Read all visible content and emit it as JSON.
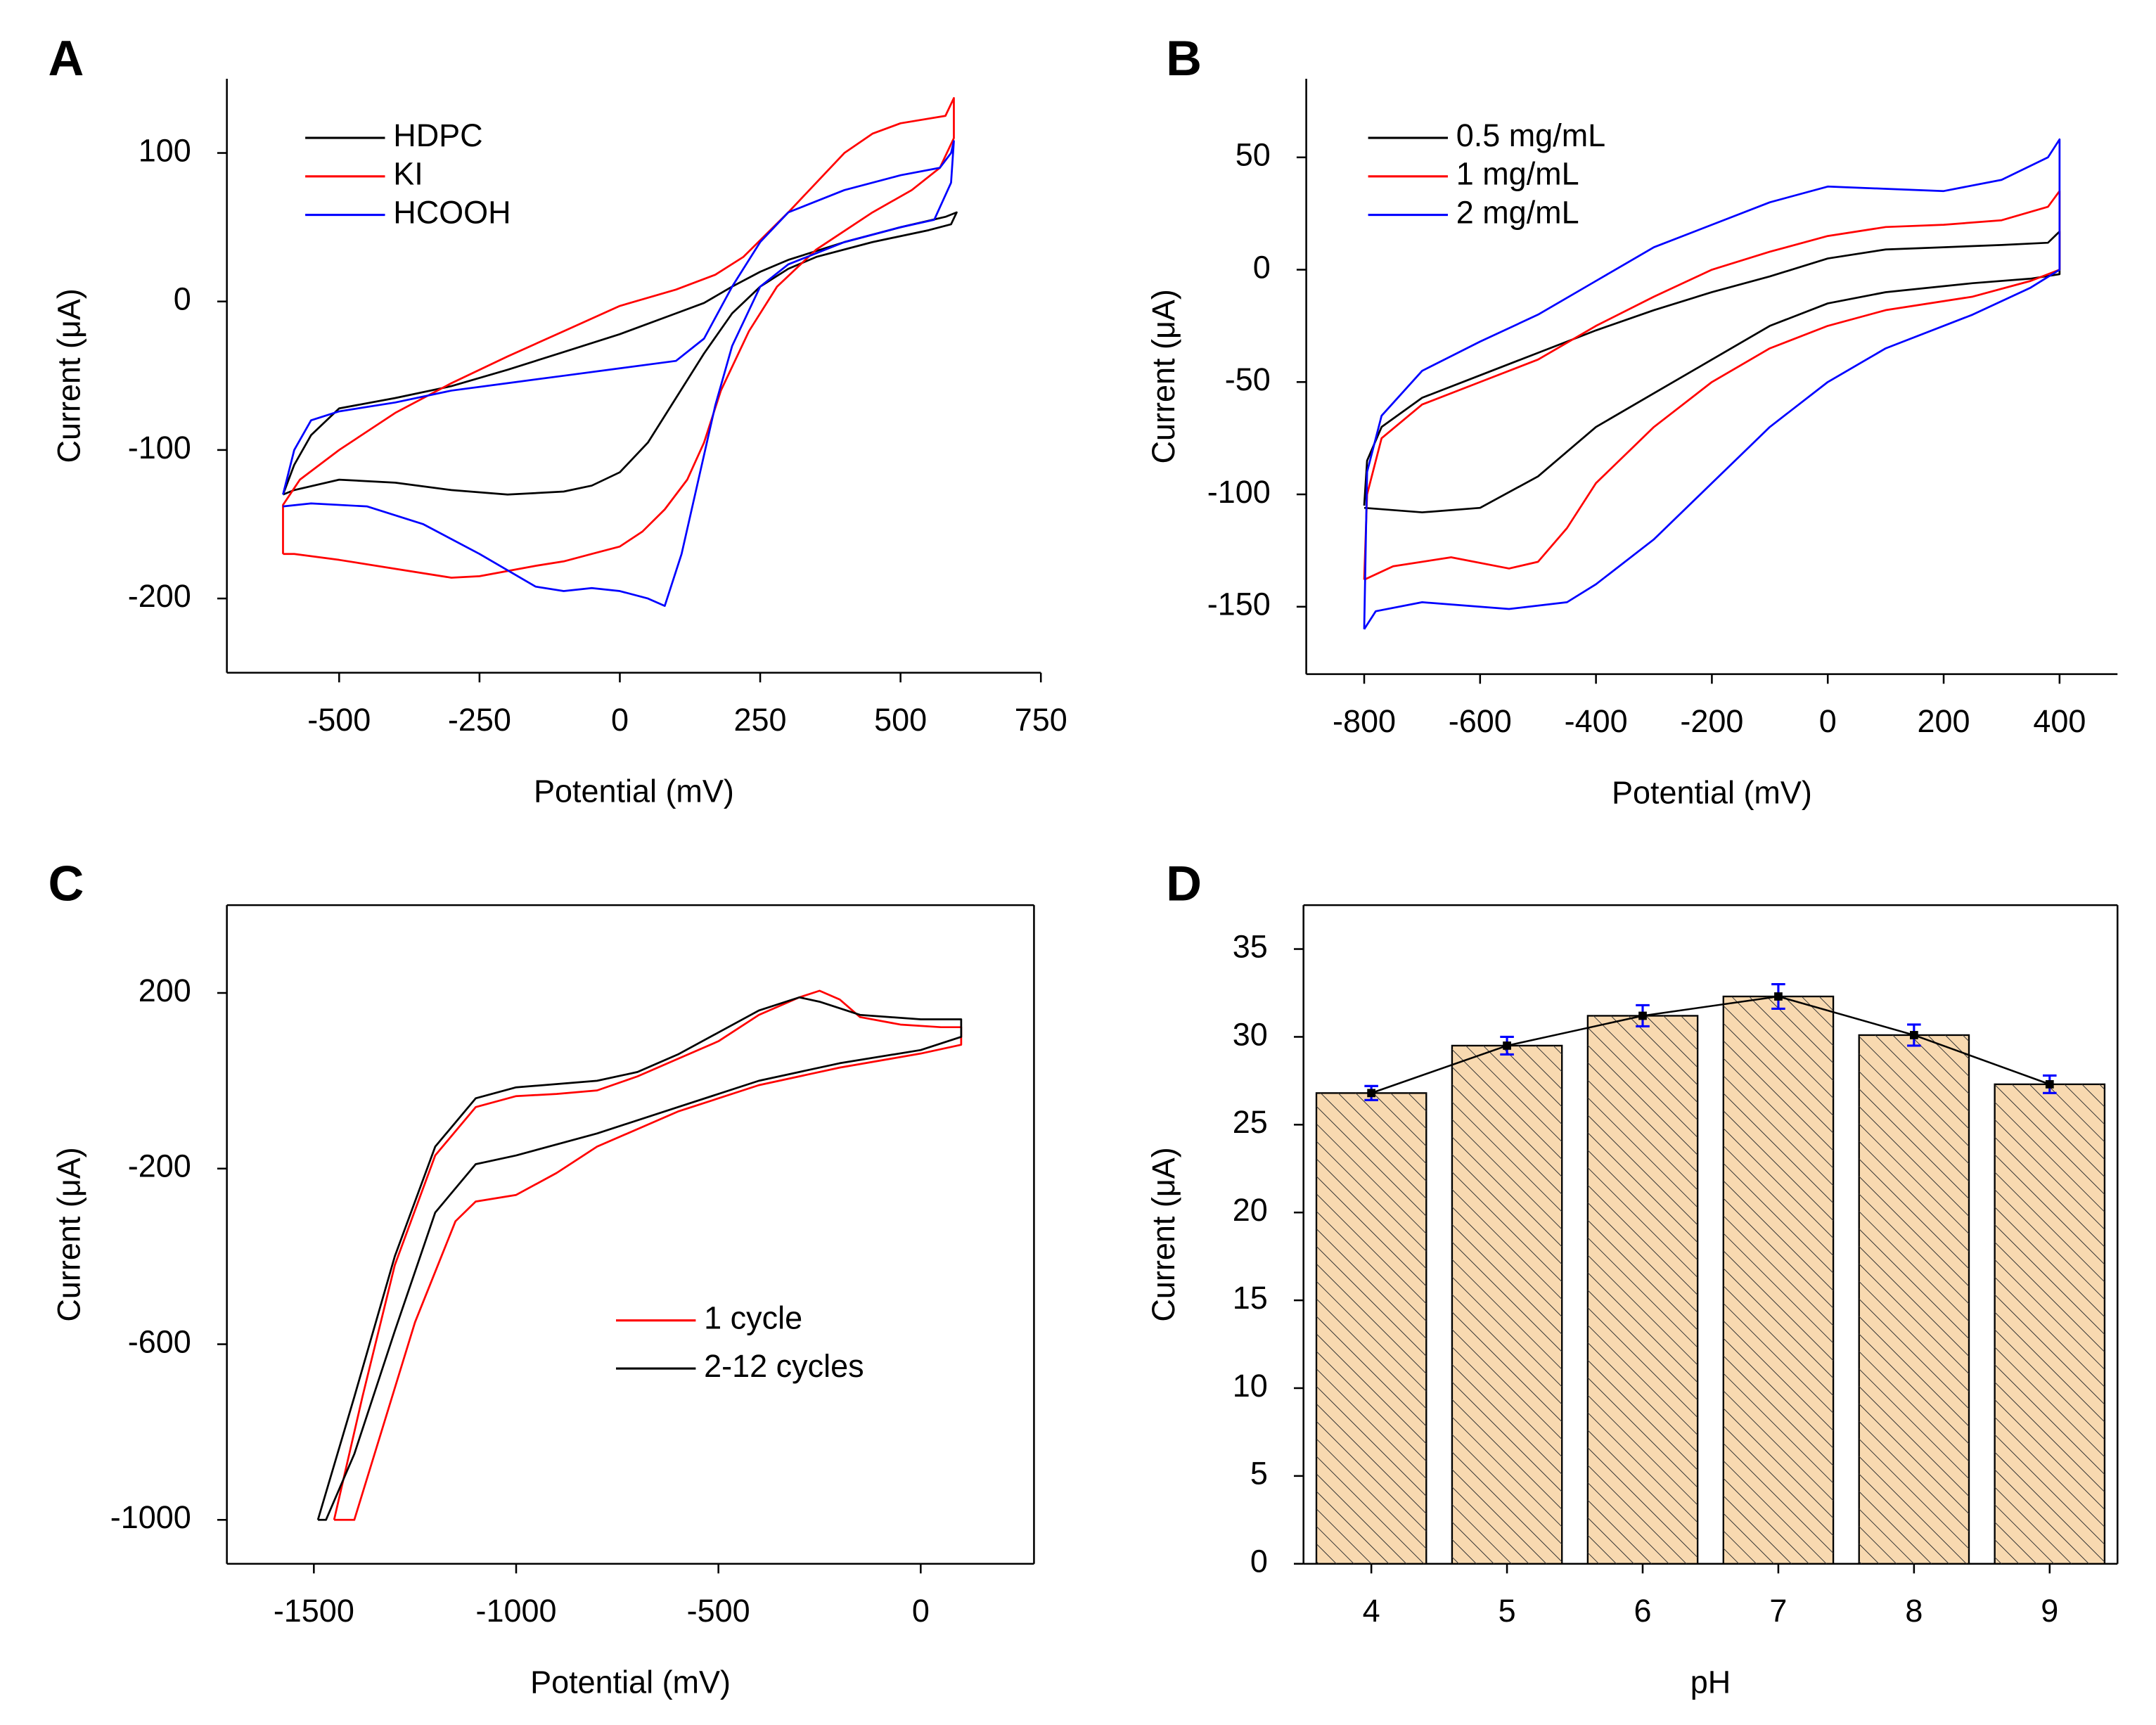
{
  "chart_data": [
    {
      "panel": "A",
      "type": "line",
      "xlabel": "Potential (mV)",
      "ylabel": "Current (μA)",
      "xlim": [
        -700,
        750
      ],
      "ylim": [
        -250,
        150
      ],
      "xticks": [
        -500,
        -250,
        0,
        250,
        500,
        750
      ],
      "yticks": [
        -200,
        -100,
        0,
        100
      ],
      "series": [
        {
          "name": "HDPC",
          "color": "#000000",
          "x": [
            -600,
            -580,
            -550,
            -500,
            -400,
            -300,
            -200,
            -100,
            0,
            100,
            150,
            200,
            250,
            300,
            400,
            500,
            580,
            600,
            590,
            550,
            450,
            350,
            300,
            250,
            200,
            150,
            100,
            50,
            0,
            -50,
            -100,
            -200,
            -300,
            -400,
            -500,
            -580,
            -600
          ],
          "values": [
            -130,
            -110,
            -90,
            -72,
            -65,
            -57,
            -46,
            -34,
            -22,
            -8,
            -1,
            10,
            20,
            28,
            40,
            50,
            57,
            60,
            52,
            48,
            40,
            30,
            22,
            10,
            -8,
            -35,
            -65,
            -95,
            -115,
            -124,
            -128,
            -130,
            -127,
            -122,
            -120,
            -127,
            -130
          ]
        },
        {
          "name": "KI",
          "color": "#ff0000",
          "x": [
            -600,
            -600,
            -570,
            -500,
            -400,
            -300,
            -200,
            -100,
            0,
            100,
            170,
            220,
            260,
            300,
            350,
            400,
            450,
            500,
            580,
            595,
            595,
            570,
            520,
            450,
            350,
            280,
            230,
            180,
            150,
            120,
            80,
            40,
            0,
            -50,
            -100,
            -150,
            -250,
            -300,
            -400,
            -500,
            -580,
            -600
          ],
          "values": [
            -170,
            -137,
            -120,
            -100,
            -75,
            -55,
            -37,
            -20,
            -3,
            8,
            18,
            30,
            45,
            60,
            80,
            100,
            113,
            120,
            125,
            137,
            110,
            90,
            75,
            60,
            35,
            10,
            -20,
            -60,
            -95,
            -120,
            -140,
            -155,
            -165,
            -170,
            -175,
            -178,
            -185,
            -186,
            -180,
            -174,
            -170,
            -170
          ]
        },
        {
          "name": "HCOOH",
          "color": "#0000ff",
          "x": [
            -600,
            -580,
            -550,
            -500,
            -400,
            -300,
            -200,
            -100,
            0,
            100,
            150,
            200,
            250,
            300,
            400,
            500,
            570,
            590,
            595,
            590,
            560,
            500,
            400,
            300,
            250,
            200,
            170,
            140,
            110,
            80,
            50,
            0,
            -50,
            -100,
            -150,
            -250,
            -350,
            -450,
            -550,
            -600
          ],
          "values": [
            -130,
            -100,
            -80,
            -74,
            -68,
            -60,
            -55,
            -50,
            -45,
            -40,
            -25,
            10,
            40,
            60,
            75,
            85,
            90,
            100,
            108,
            80,
            55,
            50,
            40,
            25,
            10,
            -30,
            -70,
            -120,
            -170,
            -205,
            -200,
            -195,
            -193,
            -195,
            -192,
            -170,
            -150,
            -138,
            -136,
            -138
          ]
        }
      ]
    },
    {
      "panel": "B",
      "type": "line",
      "xlabel": "Potential (mV)",
      "ylabel": "Current (μA)",
      "xlim": [
        -900,
        500
      ],
      "ylim": [
        -180,
        85
      ],
      "xticks": [
        -800,
        -600,
        -400,
        -200,
        0,
        200,
        400
      ],
      "yticks": [
        -150,
        -100,
        -50,
        0,
        50
      ],
      "series": [
        {
          "name": "0.5 mg/mL",
          "color": "#000000",
          "x": [
            -800,
            -795,
            -770,
            -700,
            -600,
            -500,
            -400,
            -300,
            -200,
            -100,
            0,
            100,
            200,
            300,
            380,
            400,
            400,
            350,
            250,
            100,
            0,
            -100,
            -200,
            -300,
            -400,
            -500,
            -600,
            -700,
            -800
          ],
          "values": [
            -105,
            -85,
            -70,
            -57,
            -47,
            -37,
            -27,
            -18,
            -10,
            -3,
            5,
            9,
            10,
            11,
            12,
            17,
            -2,
            -4,
            -6,
            -10,
            -15,
            -25,
            -40,
            -55,
            -70,
            -92,
            -106,
            -108,
            -106
          ]
        },
        {
          "name": "1 mg/mL",
          "color": "#ff0000",
          "x": [
            -800,
            -795,
            -770,
            -700,
            -600,
            -500,
            -400,
            -300,
            -200,
            -100,
            0,
            100,
            200,
            300,
            380,
            400,
            400,
            350,
            250,
            100,
            0,
            -100,
            -200,
            -300,
            -400,
            -450,
            -500,
            -550,
            -650,
            -750,
            -800
          ],
          "values": [
            -138,
            -100,
            -75,
            -60,
            -50,
            -40,
            -25,
            -12,
            0,
            8,
            15,
            19,
            20,
            22,
            28,
            35,
            0,
            -5,
            -12,
            -18,
            -25,
            -35,
            -50,
            -70,
            -95,
            -115,
            -130,
            -133,
            -128,
            -132,
            -138
          ]
        },
        {
          "name": "2 mg/mL",
          "color": "#0000ff",
          "x": [
            -800,
            -795,
            -770,
            -700,
            -600,
            -500,
            -400,
            -300,
            -200,
            -100,
            0,
            100,
            200,
            300,
            380,
            400,
            400,
            350,
            250,
            100,
            0,
            -100,
            -200,
            -300,
            -400,
            -450,
            -550,
            -700,
            -780,
            -800
          ],
          "values": [
            -160,
            -90,
            -65,
            -45,
            -32,
            -20,
            -5,
            10,
            20,
            30,
            37,
            36,
            35,
            40,
            50,
            58,
            0,
            -8,
            -20,
            -35,
            -50,
            -70,
            -95,
            -120,
            -140,
            -148,
            -151,
            -148,
            -152,
            -160
          ]
        }
      ]
    },
    {
      "panel": "C",
      "type": "line",
      "xlabel": "Potential (mV)",
      "ylabel": "Current (μA)",
      "xlim": [
        -1715,
        280
      ],
      "ylim": [
        -1100,
        400
      ],
      "xticks": [
        -1500,
        -1000,
        -500,
        0
      ],
      "yticks": [
        -1000,
        -600,
        -200,
        200
      ],
      "series": [
        {
          "name": "1 cycle",
          "color": "#ff0000",
          "x": [
            -1450,
            -1380,
            -1300,
            -1200,
            -1100,
            -1000,
            -900,
            -800,
            -700,
            -600,
            -500,
            -400,
            -300,
            -250,
            -200,
            -150,
            -50,
            50,
            100,
            100,
            0,
            -200,
            -400,
            -600,
            -800,
            -900,
            -1000,
            -1100,
            -1150,
            -1250,
            -1350,
            -1400,
            -1430,
            -1450
          ],
          "values": [
            -1000,
            -720,
            -420,
            -170,
            -60,
            -35,
            -30,
            -22,
            10,
            50,
            90,
            150,
            190,
            205,
            185,
            145,
            128,
            122,
            122,
            82,
            62,
            30,
            -10,
            -70,
            -150,
            -210,
            -260,
            -275,
            -320,
            -550,
            -850,
            -1000,
            -1000,
            -1000
          ]
        },
        {
          "name": "2-12 cycles",
          "color": "#000000",
          "x": [
            -1490,
            -1400,
            -1300,
            -1200,
            -1100,
            -1000,
            -800,
            -700,
            -600,
            -500,
            -400,
            -300,
            -250,
            -150,
            0,
            100,
            100,
            0,
            -200,
            -400,
            -600,
            -800,
            -1000,
            -1100,
            -1200,
            -1300,
            -1400,
            -1470,
            -1490
          ],
          "values": [
            -1000,
            -720,
            -400,
            -150,
            -40,
            -15,
            0,
            20,
            60,
            110,
            160,
            190,
            180,
            150,
            140,
            140,
            100,
            70,
            40,
            0,
            -60,
            -120,
            -170,
            -190,
            -300,
            -570,
            -850,
            -1000,
            -1000
          ]
        }
      ]
    },
    {
      "panel": "D",
      "type": "bar",
      "xlabel": "pH",
      "ylabel": "Current (μA)",
      "categories": [
        "4",
        "5",
        "6",
        "7",
        "8",
        "9"
      ],
      "values": [
        26.8,
        29.5,
        31.2,
        32.3,
        30.1,
        27.3
      ],
      "errors": [
        0.4,
        0.5,
        0.6,
        0.7,
        0.6,
        0.5
      ],
      "color": "#f8d9b0",
      "error_color": "#0000ff",
      "ylim": [
        0,
        37.5
      ],
      "yticks": [
        0,
        5,
        10,
        15,
        20,
        25,
        30,
        35
      ]
    }
  ]
}
